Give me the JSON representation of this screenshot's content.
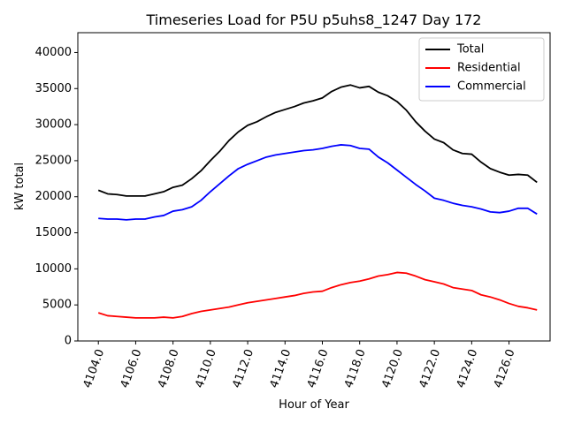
{
  "chart_data": {
    "type": "line",
    "title": "Timeseries Load for P5U p5uhs8_1247  Day 172",
    "xlabel": "Hour of Year",
    "ylabel": "kW total",
    "xlim": [
      4102.9,
      4128.2
    ],
    "ylim": [
      0,
      42750
    ],
    "xticks": [
      4104,
      4106,
      4108,
      4110,
      4112,
      4114,
      4116,
      4118,
      4120,
      4122,
      4124,
      4126
    ],
    "xtick_labels": [
      "4104.0",
      "4106.0",
      "4108.0",
      "4110.0",
      "4112.0",
      "4114.0",
      "4116.0",
      "4118.0",
      "4120.0",
      "4122.0",
      "4124.0",
      "4126.0"
    ],
    "yticks": [
      0,
      5000,
      10000,
      15000,
      20000,
      25000,
      30000,
      35000,
      40000
    ],
    "ytick_labels": [
      "0",
      "5000",
      "10000",
      "15000",
      "20000",
      "25000",
      "30000",
      "35000",
      "40000"
    ],
    "grid": false,
    "legend_position": "top-right",
    "x": [
      4104.0,
      4104.5,
      4105.0,
      4105.5,
      4106.0,
      4106.5,
      4107.0,
      4107.5,
      4108.0,
      4108.5,
      4109.0,
      4109.5,
      4110.0,
      4110.5,
      4111.0,
      4111.5,
      4112.0,
      4112.5,
      4113.0,
      4113.5,
      4114.0,
      4114.5,
      4115.0,
      4115.5,
      4116.0,
      4116.5,
      4117.0,
      4117.5,
      4118.0,
      4118.5,
      4119.0,
      4119.5,
      4120.0,
      4120.5,
      4121.0,
      4121.5,
      4122.0,
      4122.5,
      4123.0,
      4123.5,
      4124.0,
      4124.5,
      4125.0,
      4125.5,
      4126.0,
      4126.5,
      4127.0,
      4127.5
    ],
    "series": [
      {
        "name": "Total",
        "color": "#000000",
        "values": [
          20900,
          20400,
          20300,
          20100,
          20100,
          20100,
          20400,
          20700,
          21300,
          21600,
          22500,
          23600,
          25000,
          26300,
          27800,
          29000,
          29900,
          30400,
          31100,
          31700,
          32100,
          32500,
          33000,
          33300,
          33700,
          34600,
          35200,
          35500,
          35100,
          35300,
          34500,
          34000,
          33200,
          32000,
          30400,
          29100,
          28000,
          27500,
          26500,
          26000,
          25900,
          24800,
          23900,
          23400,
          23000,
          23100,
          23000,
          22000
        ]
      },
      {
        "name": "Residential",
        "color": "#ff0000",
        "values": [
          3900,
          3500,
          3400,
          3300,
          3200,
          3200,
          3200,
          3300,
          3200,
          3400,
          3800,
          4100,
          4300,
          4500,
          4700,
          5000,
          5300,
          5500,
          5700,
          5900,
          6100,
          6300,
          6600,
          6800,
          6900,
          7400,
          7800,
          8100,
          8300,
          8600,
          9000,
          9200,
          9500,
          9400,
          9000,
          8500,
          8200,
          7900,
          7400,
          7200,
          7000,
          6400,
          6100,
          5700,
          5200,
          4800,
          4600,
          4300
        ]
      },
      {
        "name": "Commercial",
        "color": "#0000ff",
        "values": [
          17000,
          16900,
          16900,
          16800,
          16900,
          16900,
          17200,
          17400,
          18000,
          18200,
          18600,
          19500,
          20700,
          21800,
          22900,
          23900,
          24500,
          25000,
          25500,
          25800,
          26000,
          26200,
          26400,
          26500,
          26700,
          27000,
          27200,
          27100,
          26700,
          26600,
          25500,
          24700,
          23700,
          22700,
          21700,
          20800,
          19800,
          19500,
          19100,
          18800,
          18600,
          18300,
          17900,
          17800,
          18000,
          18400,
          18400,
          17600
        ]
      }
    ]
  }
}
